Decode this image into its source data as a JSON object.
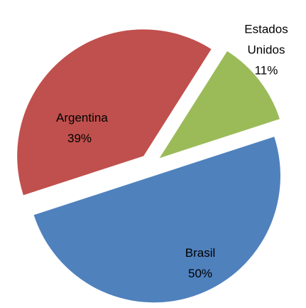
{
  "chart_data": {
    "type": "pie",
    "categories": [
      "Brasil",
      "Argentina",
      "Estados Unidos"
    ],
    "values": [
      50,
      39,
      11
    ],
    "value_labels": [
      "50%",
      "39%",
      "11%"
    ],
    "colors": [
      "#4f81bd",
      "#c0504d",
      "#9bbb59"
    ]
  }
}
